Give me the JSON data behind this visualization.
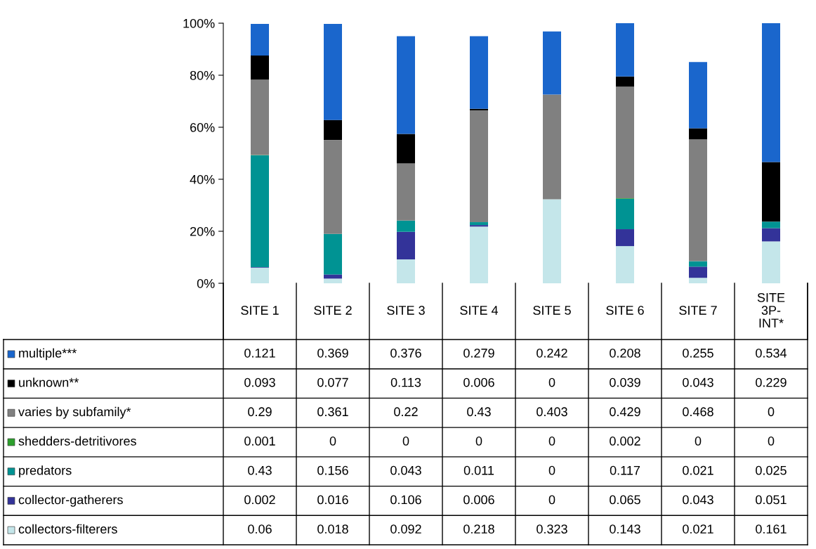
{
  "chart_data": {
    "type": "bar",
    "stacked": true,
    "data_labels": true,
    "categories": [
      "SITE 1",
      "SITE 2",
      "SITE 3",
      "SITE 4",
      "SITE 5",
      "SITE 6",
      "SITE 7",
      "SITE 3P-INT*"
    ],
    "series": [
      {
        "name": "collectors-filterers",
        "color": "#c4e6ea",
        "values": [
          0.06,
          0.018,
          0.092,
          0.218,
          0.323,
          0.143,
          0.021,
          0.161
        ]
      },
      {
        "name": "collector-gatherers",
        "color": "#333399",
        "values": [
          0.002,
          0.016,
          0.106,
          0.006,
          0,
          0.065,
          0.043,
          0.051
        ]
      },
      {
        "name": "predators",
        "color": "#009393",
        "values": [
          0.43,
          0.156,
          0.043,
          0.011,
          0,
          0.117,
          0.021,
          0.025
        ]
      },
      {
        "name": "shedders-detritivores",
        "color": "#2ca02c",
        "values": [
          0.001,
          0,
          0,
          0,
          0,
          0.002,
          0,
          0
        ]
      },
      {
        "name": "varies by subfamily*",
        "color": "#808080",
        "values": [
          0.29,
          0.361,
          0.22,
          0.43,
          0.403,
          0.429,
          0.468,
          0
        ]
      },
      {
        "name": "unknown**",
        "color": "#000000",
        "values": [
          0.093,
          0.077,
          0.113,
          0.006,
          0,
          0.039,
          0.043,
          0.229
        ]
      },
      {
        "name": "multiple***",
        "color": "#1a66cc",
        "values": [
          0.121,
          0.369,
          0.376,
          0.279,
          0.242,
          0.208,
          0.255,
          0.534
        ]
      }
    ],
    "ylim": [
      0,
      1
    ],
    "yticks": [
      {
        "value": 0,
        "label": "0%"
      },
      {
        "value": 0.2,
        "label": "20%"
      },
      {
        "value": 0.4,
        "label": "40%"
      },
      {
        "value": 0.6,
        "label": "60%"
      },
      {
        "value": 0.8,
        "label": "80%"
      },
      {
        "value": 1,
        "label": "100%"
      }
    ],
    "grid": false,
    "legend": "bottom left"
  }
}
